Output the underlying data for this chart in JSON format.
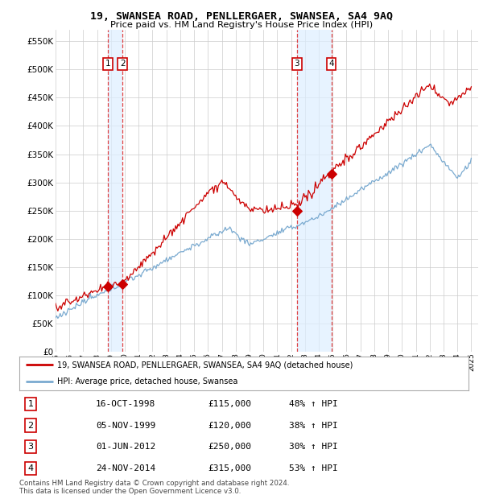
{
  "title": "19, SWANSEA ROAD, PENLLERGAER, SWANSEA, SA4 9AQ",
  "subtitle": "Price paid vs. HM Land Registry's House Price Index (HPI)",
  "ylim": [
    0,
    570000
  ],
  "yticks": [
    0,
    50000,
    100000,
    150000,
    200000,
    250000,
    300000,
    350000,
    400000,
    450000,
    500000,
    550000
  ],
  "sale_dates_decimal": [
    1998.79,
    1999.84,
    2012.42,
    2014.9
  ],
  "sale_prices": [
    115000,
    120000,
    250000,
    315000
  ],
  "sale_labels": [
    "1",
    "2",
    "3",
    "4"
  ],
  "sale_info": [
    [
      "1",
      "16-OCT-1998",
      "£115,000",
      "48% ↑ HPI"
    ],
    [
      "2",
      "05-NOV-1999",
      "£120,000",
      "38% ↑ HPI"
    ],
    [
      "3",
      "01-JUN-2012",
      "£250,000",
      "30% ↑ HPI"
    ],
    [
      "4",
      "24-NOV-2014",
      "£315,000",
      "53% ↑ HPI"
    ]
  ],
  "legend_line1": "19, SWANSEA ROAD, PENLLERGAER, SWANSEA, SA4 9AQ (detached house)",
  "legend_line2": "HPI: Average price, detached house, Swansea",
  "footer1": "Contains HM Land Registry data © Crown copyright and database right 2024.",
  "footer2": "This data is licensed under the Open Government Licence v3.0.",
  "line_color_sold": "#cc0000",
  "line_color_hpi": "#7aaad0",
  "shade_color": "#ddeeff",
  "grid_color": "#cccccc",
  "background_color": "#ffffff",
  "xlim_left": 1995.0,
  "xlim_right": 2025.5
}
